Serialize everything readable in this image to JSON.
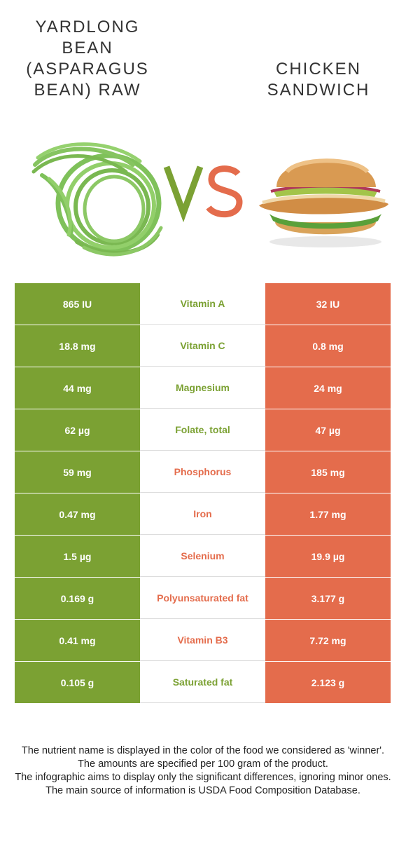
{
  "header": {
    "left_food": "Yardlong bean (Asparagus bean) raw",
    "right_food": "Chicken sandwich",
    "vs_label": "VS"
  },
  "colors": {
    "left": "#7ba133",
    "right": "#e46c4c"
  },
  "nutrients": [
    {
      "name": "Vitamin A",
      "left": "865 IU",
      "right": "32 IU",
      "winner": "left"
    },
    {
      "name": "Vitamin C",
      "left": "18.8 mg",
      "right": "0.8 mg",
      "winner": "left"
    },
    {
      "name": "Magnesium",
      "left": "44 mg",
      "right": "24 mg",
      "winner": "left"
    },
    {
      "name": "Folate, total",
      "left": "62 µg",
      "right": "47 µg",
      "winner": "left"
    },
    {
      "name": "Phosphorus",
      "left": "59 mg",
      "right": "185 mg",
      "winner": "right"
    },
    {
      "name": "Iron",
      "left": "0.47 mg",
      "right": "1.77 mg",
      "winner": "right"
    },
    {
      "name": "Selenium",
      "left": "1.5 µg",
      "right": "19.9 µg",
      "winner": "right"
    },
    {
      "name": "Polyunsaturated fat",
      "left": "0.169 g",
      "right": "3.177 g",
      "winner": "right"
    },
    {
      "name": "Vitamin B3",
      "left": "0.41 mg",
      "right": "7.72 mg",
      "winner": "right"
    },
    {
      "name": "Saturated fat",
      "left": "0.105 g",
      "right": "2.123 g",
      "winner": "left"
    }
  ],
  "footer": {
    "line1": "The nutrient name is displayed in the color of the food we considered as 'winner'.",
    "line2": "The amounts are specified per 100 gram of the product.",
    "line3": "The infographic aims to display only the significant differences, ignoring minor ones.",
    "line4": "The main source of information is USDA Food Composition Database."
  }
}
